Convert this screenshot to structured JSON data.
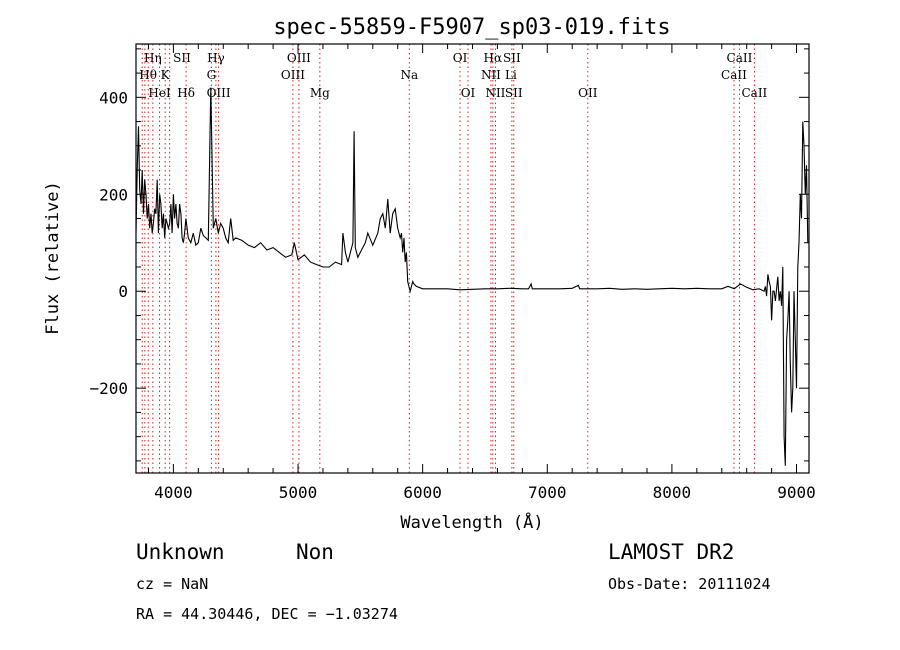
{
  "chart_data": {
    "type": "line",
    "title": "spec-55859-F5907_sp03-019.fits",
    "xlabel": "Wavelength (Å)",
    "ylabel": "Flux (relative)",
    "xlim": [
      3700,
      9100
    ],
    "ylim": [
      -375,
      510
    ],
    "xticks": [
      "4000",
      "5000",
      "6000",
      "7000",
      "8000",
      "9000"
    ],
    "yticks": [
      "−200",
      "0",
      "200",
      "400"
    ],
    "xtick_values": [
      4000,
      5000,
      6000,
      7000,
      8000,
      9000
    ],
    "ytick_values": [
      -200,
      0,
      200,
      400
    ],
    "grid": false,
    "series": [
      {
        "x": [
          3700,
          3710,
          3720,
          3730,
          3740,
          3750,
          3760,
          3770,
          3780,
          3790,
          3800,
          3810,
          3820,
          3830,
          3840,
          3850,
          3860,
          3870,
          3880,
          3890,
          3900,
          3910,
          3920,
          3930,
          3940,
          3950,
          3960,
          3970,
          3980,
          3990,
          4000,
          4010,
          4020,
          4030,
          4040,
          4050,
          4060,
          4070,
          4080,
          4090,
          4100,
          4120,
          4140,
          4160,
          4180,
          4200,
          4220,
          4240,
          4260,
          4280,
          4300,
          4320,
          4340,
          4360,
          4380,
          4400,
          4420,
          4440,
          4460,
          4480,
          4500,
          4550,
          4600,
          4650,
          4700,
          4750,
          4800,
          4850,
          4900,
          4950,
          4970,
          5000,
          5050,
          5100,
          5150,
          5200,
          5250,
          5300,
          5350,
          5360,
          5380,
          5400,
          5440,
          5450,
          5460,
          5480,
          5500,
          5540,
          5550,
          5560,
          5600,
          5640,
          5660,
          5680,
          5700,
          5720,
          5740,
          5760,
          5780,
          5800,
          5820,
          5830,
          5840,
          5850,
          5860,
          5870,
          5880,
          5890,
          5900,
          5920,
          5930,
          5950,
          6000,
          6100,
          6200,
          6300,
          6400,
          6500,
          6600,
          6700,
          6800,
          6850,
          6870,
          6880,
          6900,
          7000,
          7100,
          7200,
          7250,
          7260,
          7300,
          7400,
          7500,
          7600,
          7700,
          7800,
          7900,
          8000,
          8100,
          8200,
          8300,
          8400,
          8450,
          8500,
          8550,
          8600,
          8650,
          8700,
          8740,
          8750,
          8760,
          8770,
          8780,
          8790,
          8800,
          8810,
          8820,
          8830,
          8840,
          8850,
          8860,
          8870,
          8880,
          8890,
          8900,
          8910,
          8920,
          8930,
          8940,
          8950,
          8960,
          8970,
          8980,
          8990,
          9000,
          9010,
          9020,
          9030,
          9040,
          9050,
          9060,
          9070,
          9080,
          9090
        ],
        "y": [
          120,
          250,
          340,
          210,
          180,
          250,
          160,
          230,
          200,
          150,
          180,
          130,
          160,
          120,
          140,
          170,
          160,
          230,
          120,
          200,
          180,
          130,
          160,
          110,
          150,
          140,
          130,
          140,
          180,
          120,
          200,
          150,
          180,
          140,
          130,
          180,
          160,
          110,
          100,
          120,
          150,
          110,
          100,
          120,
          95,
          100,
          130,
          115,
          110,
          105,
          420,
          130,
          150,
          120,
          140,
          130,
          110,
          100,
          150,
          105,
          110,
          105,
          95,
          90,
          100,
          85,
          90,
          80,
          70,
          75,
          100,
          65,
          75,
          60,
          55,
          50,
          50,
          60,
          55,
          120,
          80,
          60,
          100,
          330,
          90,
          70,
          80,
          100,
          110,
          120,
          95,
          120,
          150,
          160,
          130,
          190,
          120,
          160,
          170,
          130,
          110,
          120,
          80,
          110,
          60,
          80,
          20,
          10,
          0,
          20,
          15,
          10,
          5,
          5,
          5,
          3,
          4,
          5,
          5,
          6,
          5,
          5,
          15,
          5,
          5,
          5,
          5,
          6,
          12,
          5,
          5,
          5,
          6,
          4,
          5,
          4,
          5,
          6,
          5,
          6,
          5,
          5,
          10,
          5,
          15,
          8,
          3,
          5,
          0,
          10,
          -10,
          35,
          20,
          10,
          -60,
          0,
          0,
          -20,
          5,
          30,
          -20,
          0,
          -30,
          50,
          -300,
          -360,
          -100,
          -60,
          0,
          -150,
          -250,
          -200,
          0,
          -100,
          -200,
          50,
          100,
          200,
          150,
          350,
          300,
          200,
          260,
          100
        ]
      }
    ],
    "lines": [
      {
        "label": "Hη",
        "wavelength": 3835,
        "row": 1
      },
      {
        "label": "Hθ",
        "wavelength": 3797,
        "row": 2
      },
      {
        "label": "K",
        "wavelength": 3934,
        "row": 2
      },
      {
        "label": "HeI",
        "wavelength": 3889,
        "row": 3
      },
      {
        "label": "SII",
        "wavelength": 4069,
        "row": 1
      },
      {
        "label": "Hδ",
        "wavelength": 4102,
        "row": 3
      },
      {
        "label": "Hγ",
        "wavelength": 4341,
        "row": 1
      },
      {
        "label": "G",
        "wavelength": 4305,
        "row": 2
      },
      {
        "label": "OIII",
        "wavelength": 4363,
        "row": 3
      },
      {
        "label": "OIII",
        "wavelength": 5007,
        "row": 1
      },
      {
        "label": "OIII",
        "wavelength": 4959,
        "row": 2
      },
      {
        "label": "Mg",
        "wavelength": 5175,
        "row": 3
      },
      {
        "label": "Na",
        "wavelength": 5893,
        "row": 2
      },
      {
        "label": "OI",
        "wavelength": 6300,
        "row": 1
      },
      {
        "label": "OI",
        "wavelength": 6364,
        "row": 3
      },
      {
        "label": "Hα",
        "wavelength": 6563,
        "row": 1
      },
      {
        "label": "SII",
        "wavelength": 6716,
        "row": 1
      },
      {
        "label": "NII",
        "wavelength": 6548,
        "row": 2
      },
      {
        "label": "Li",
        "wavelength": 6708,
        "row": 2
      },
      {
        "label": "NII",
        "wavelength": 6584,
        "row": 3
      },
      {
        "label": "SII",
        "wavelength": 6731,
        "row": 3
      },
      {
        "label": "OII",
        "wavelength": 7325,
        "row": 3
      },
      {
        "label": "CaII",
        "wavelength": 8542,
        "row": 1
      },
      {
        "label": "CaII",
        "wavelength": 8498,
        "row": 2
      },
      {
        "label": "CaII",
        "wavelength": 8662,
        "row": 3
      }
    ],
    "marker_lines": [
      3750,
      3771,
      3798,
      3835,
      3889,
      3934,
      3970,
      4102,
      4305,
      4341,
      4363,
      4959,
      5007,
      5175,
      5893,
      6300,
      6364,
      6548,
      6563,
      6584,
      6716,
      6731,
      7325,
      8498,
      8542,
      8662
    ]
  },
  "footer": {
    "class_label": "Unknown",
    "subclass_label": "Non",
    "survey": "LAMOST DR2",
    "cz": "cz = NaN",
    "obs_date": "Obs-Date: 20111024",
    "coords": "RA =  44.30446, DEC =  −1.03274"
  }
}
